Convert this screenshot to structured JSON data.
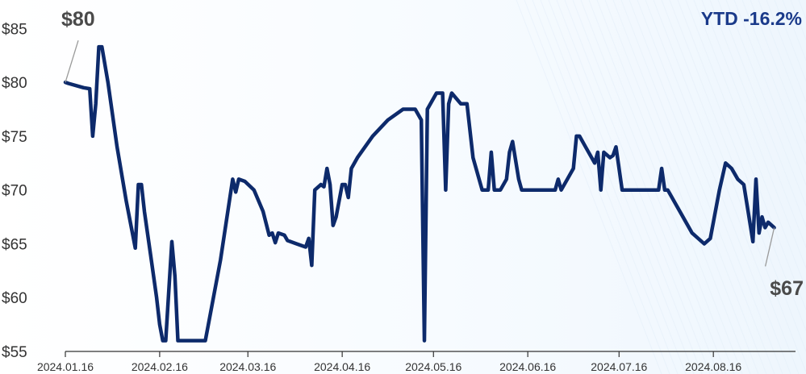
{
  "colors": {
    "line": "#0d2a6b",
    "axis": "#333333",
    "annotation_text": "#4a4a4a",
    "ytd": "#1a3a8a",
    "leader": "#9a9a9a"
  },
  "chart_data": {
    "type": "line",
    "title": "",
    "xlabel": "",
    "ylabel": "",
    "ylim": [
      55,
      86
    ],
    "y_ticks": [
      "$55",
      "$60",
      "$65",
      "$70",
      "$75",
      "$80",
      "$85"
    ],
    "y_tick_values": [
      55,
      60,
      65,
      70,
      75,
      80,
      85
    ],
    "x_ticks": [
      "2024.01.16",
      "2024.02.16",
      "2024.03.16",
      "2024.04.16",
      "2024.05.16",
      "2024.06.16",
      "2024.07.16",
      "2024.08.16"
    ],
    "x_tick_dates": [
      "2024-01-16",
      "2024-02-16",
      "2024-03-16",
      "2024-04-16",
      "2024-05-16",
      "2024-06-16",
      "2024-07-16",
      "2024-08-16"
    ],
    "x_range": [
      "2024-01-16",
      "2024-09-12"
    ],
    "grid": false,
    "series": [
      {
        "points": [
          [
            "2024-01-16",
            80
          ],
          [
            "2024-01-17",
            79.9
          ],
          [
            "2024-01-22",
            79.5
          ],
          [
            "2024-01-24",
            79.4
          ],
          [
            "2024-01-25",
            75
          ],
          [
            "2024-01-26",
            78
          ],
          [
            "2024-01-27",
            83.3
          ],
          [
            "2024-01-28",
            83.3
          ],
          [
            "2024-01-30",
            80
          ],
          [
            "2024-02-02",
            74
          ],
          [
            "2024-02-05",
            69
          ],
          [
            "2024-02-08",
            64.6
          ],
          [
            "2024-02-09",
            70.5
          ],
          [
            "2024-02-10",
            70.5
          ],
          [
            "2024-02-11",
            68
          ],
          [
            "2024-02-13",
            64
          ],
          [
            "2024-02-15",
            60
          ],
          [
            "2024-02-16",
            57.5
          ],
          [
            "2024-02-17",
            56
          ],
          [
            "2024-02-18",
            56
          ],
          [
            "2024-02-20",
            65.2
          ],
          [
            "2024-02-21",
            62
          ],
          [
            "2024-02-22",
            56
          ],
          [
            "2024-02-24",
            56
          ],
          [
            "2024-02-26",
            56
          ],
          [
            "2024-03-02",
            56
          ],
          [
            "2024-03-07",
            63.5
          ],
          [
            "2024-03-11",
            71
          ],
          [
            "2024-03-12",
            69.8
          ],
          [
            "2024-03-13",
            71
          ],
          [
            "2024-03-15",
            70.8
          ],
          [
            "2024-03-18",
            70
          ],
          [
            "2024-03-21",
            68
          ],
          [
            "2024-03-23",
            65.8
          ],
          [
            "2024-03-24",
            66
          ],
          [
            "2024-03-25",
            65.1
          ],
          [
            "2024-03-26",
            66
          ],
          [
            "2024-03-28",
            65.8
          ],
          [
            "2024-03-29",
            65.3
          ],
          [
            "2024-04-01",
            65
          ],
          [
            "2024-04-04",
            64.7
          ],
          [
            "2024-04-05",
            65.5
          ],
          [
            "2024-04-06",
            63
          ],
          [
            "2024-04-07",
            70
          ],
          [
            "2024-04-09",
            70.5
          ],
          [
            "2024-04-10",
            70.3
          ],
          [
            "2024-04-11",
            72
          ],
          [
            "2024-04-12",
            70.5
          ],
          [
            "2024-04-13",
            66.7
          ],
          [
            "2024-04-14",
            67.5
          ],
          [
            "2024-04-16",
            70.5
          ],
          [
            "2024-04-17",
            70.5
          ],
          [
            "2024-04-18",
            69.3
          ],
          [
            "2024-04-19",
            72
          ],
          [
            "2024-04-21",
            73
          ],
          [
            "2024-04-26",
            75
          ],
          [
            "2024-05-01",
            76.5
          ],
          [
            "2024-05-06",
            77.5
          ],
          [
            "2024-05-10",
            77.5
          ],
          [
            "2024-05-12",
            76.5
          ],
          [
            "2024-05-13",
            56
          ],
          [
            "2024-05-14",
            77.5
          ],
          [
            "2024-05-17",
            79
          ],
          [
            "2024-05-19",
            79
          ],
          [
            "2024-05-20",
            70
          ],
          [
            "2024-05-21",
            78
          ],
          [
            "2024-05-22",
            79
          ],
          [
            "2024-05-25",
            78
          ],
          [
            "2024-05-27",
            78
          ],
          [
            "2024-05-29",
            73
          ],
          [
            "2024-06-01",
            70
          ],
          [
            "2024-06-03",
            70
          ],
          [
            "2024-06-04",
            73.5
          ],
          [
            "2024-06-05",
            70
          ],
          [
            "2024-06-07",
            70
          ],
          [
            "2024-06-09",
            71
          ],
          [
            "2024-06-10",
            73.5
          ],
          [
            "2024-06-11",
            74.5
          ],
          [
            "2024-06-13",
            71
          ],
          [
            "2024-06-14",
            70
          ],
          [
            "2024-06-16",
            70
          ],
          [
            "2024-06-25",
            70
          ],
          [
            "2024-06-26",
            71
          ],
          [
            "2024-06-27",
            70
          ],
          [
            "2024-06-29",
            71
          ],
          [
            "2024-07-01",
            72
          ],
          [
            "2024-07-02",
            75
          ],
          [
            "2024-07-03",
            75
          ],
          [
            "2024-07-05",
            74
          ],
          [
            "2024-07-08",
            72.5
          ],
          [
            "2024-07-09",
            73.5
          ],
          [
            "2024-07-10",
            70
          ],
          [
            "2024-07-11",
            73.5
          ],
          [
            "2024-07-13",
            73
          ],
          [
            "2024-07-14",
            73.2
          ],
          [
            "2024-07-15",
            74
          ],
          [
            "2024-07-17",
            70
          ],
          [
            "2024-07-28",
            70
          ],
          [
            "2024-07-29",
            70
          ],
          [
            "2024-07-30",
            72
          ],
          [
            "2024-07-31",
            70
          ],
          [
            "2024-08-01",
            70
          ],
          [
            "2024-08-05",
            68
          ],
          [
            "2024-08-09",
            66
          ],
          [
            "2024-08-13",
            65
          ],
          [
            "2024-08-15",
            65.5
          ],
          [
            "2024-08-18",
            70
          ],
          [
            "2024-08-20",
            72.5
          ],
          [
            "2024-08-22",
            72
          ],
          [
            "2024-08-24",
            71
          ],
          [
            "2024-08-26",
            70.5
          ],
          [
            "2024-08-28",
            67
          ],
          [
            "2024-08-29",
            65.2
          ],
          [
            "2024-08-30",
            71
          ],
          [
            "2024-08-31",
            66
          ],
          [
            "2024-09-01",
            67.5
          ],
          [
            "2024-09-02",
            66.5
          ],
          [
            "2024-09-03",
            67
          ],
          [
            "2024-09-05",
            66.5
          ]
        ]
      }
    ],
    "annotations": {
      "start_label": "$80",
      "end_label": "$67",
      "ytd_label": "YTD -16.2%"
    }
  }
}
